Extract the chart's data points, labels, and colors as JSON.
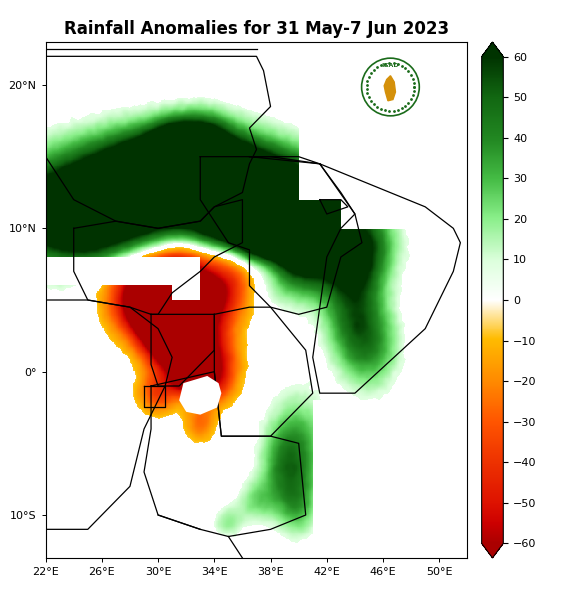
{
  "title": "Rainfall Anomalies for 31 May-7 Jun 2023",
  "title_fontsize": 12,
  "lon_min": 22,
  "lon_max": 52,
  "lat_min": -13,
  "lat_max": 23,
  "xticks": [
    22,
    26,
    30,
    34,
    38,
    42,
    46,
    50
  ],
  "yticks": [
    -10,
    0,
    10,
    20
  ],
  "colorbar_ticks": [
    -60,
    -50,
    -40,
    -30,
    -20,
    -10,
    0,
    10,
    20,
    30,
    40,
    50,
    60
  ],
  "colorbar_colors_pos": [
    [
      0.0,
      "#ffffff"
    ],
    [
      0.167,
      "#ccffcc"
    ],
    [
      0.333,
      "#88ee88"
    ],
    [
      0.5,
      "#44bb44"
    ],
    [
      0.667,
      "#228822"
    ],
    [
      0.833,
      "#116611"
    ],
    [
      1.0,
      "#003300"
    ]
  ],
  "colorbar_colors_neg": [
    [
      0.0,
      "#ffdd00"
    ],
    [
      0.2,
      "#ffaa00"
    ],
    [
      0.4,
      "#ff6600"
    ],
    [
      0.6,
      "#ee3300"
    ],
    [
      0.8,
      "#cc1100"
    ],
    [
      1.0,
      "#aa0000"
    ]
  ],
  "background_color": "#ffffff",
  "border_color": "#000000",
  "figsize": [
    5.7,
    6.0
  ],
  "dpi": 100,
  "noise_scale": 6,
  "threshold": 8
}
